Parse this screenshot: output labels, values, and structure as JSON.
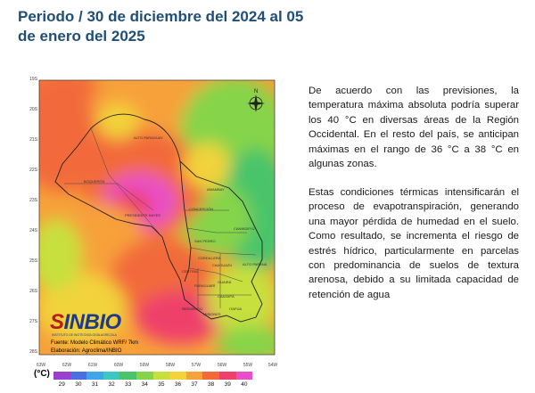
{
  "title": "Periodo / 30 de diciembre del 2024 al 05 de enero del 2025",
  "paragraphs": [
    "De acuerdo con las previsiones, la temperatura máxima absoluta podría superar los 40 °C en diversas áreas de la Región Occidental. En el resto del país, se anticipan máximas en el rango de 36 °C a 38 °C en algunas zonas.",
    "Estas condiciones térmicas intensificarán el proceso de evapotranspiración, generando una mayor pérdida de humedad en el suelo. Como resultado, se incrementa el riesgo de estrés hídrico, particularmente en parcelas con predominancia de suelos de textura arenosa, debido a su limitada capacidad de retención de agua"
  ],
  "map": {
    "lat_labels": [
      "19S",
      "20S",
      "21S",
      "22S",
      "23S",
      "24S",
      "25S",
      "26S",
      "27S",
      "28S"
    ],
    "lon_labels": [
      "63W",
      "62W",
      "61W",
      "60W",
      "59W",
      "58W",
      "57W",
      "56W",
      "55W",
      "54W"
    ],
    "departments": [
      "ALTO PARAGUAY",
      "BOQUERÓN",
      "PRESIDENTE HAYES",
      "AMAMBAY",
      "CONCEPCIÓN",
      "SAN PEDRO",
      "CANINDEYÚ",
      "ALTO PARANÁ",
      "CAAGUAZÚ",
      "ITAPÚA",
      "MISIONES",
      "ÑEEMBUCÚ",
      "CENTRAL",
      "PARAGUARÍ",
      "GUAIRÁ",
      "CAAZAPÁ",
      "CORDILLERA"
    ],
    "logo": "INBIO",
    "logo_sub": "INSTITUTO DE BIOTECNOLOGÍA AGRÍCOLA",
    "source": "Fuente: Modelo Climático WRF/ 7km",
    "credit": "Elaboración: Agroclima/INBIO",
    "compass": "N"
  },
  "legend": {
    "unit": "(°C)",
    "ticks": [
      "29",
      "30",
      "31",
      "32",
      "33",
      "34",
      "35",
      "36",
      "37",
      "38",
      "39",
      "40"
    ],
    "colors": [
      "#9b3fd0",
      "#4a6fe0",
      "#3fa6e8",
      "#3cc8c0",
      "#49c46b",
      "#86d44a",
      "#c7e03e",
      "#f2d33a",
      "#f7a13a",
      "#f26a3a",
      "#ef3f6a",
      "#e94fc9"
    ]
  }
}
